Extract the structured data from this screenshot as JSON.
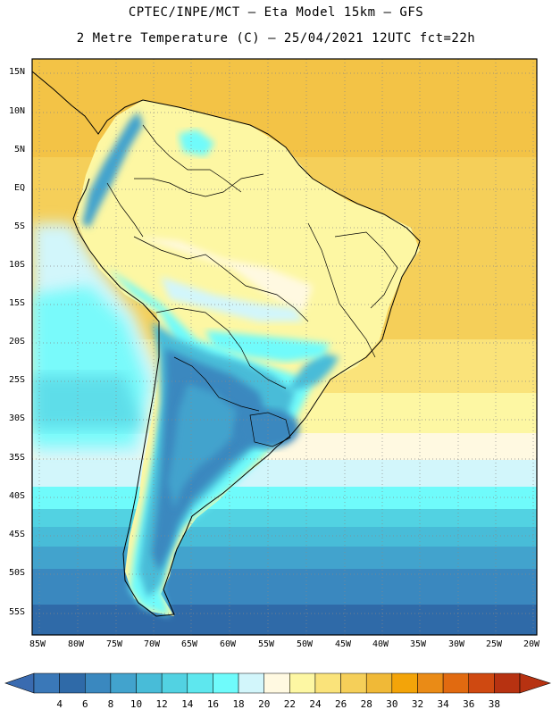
{
  "title_line1": "CPTEC/INPE/MCT –  Eta Model 15km – GFS",
  "title_line2": "2 Metre Temperature (C) – 25/04/2021 12UTC fct=22h",
  "lat_labels": [
    "15N",
    "10N",
    "5N",
    "EQ",
    "5S",
    "10S",
    "15S",
    "20S",
    "25S",
    "30S",
    "35S",
    "40S",
    "45S",
    "50S",
    "55S"
  ],
  "lon_labels": [
    "85W",
    "80W",
    "75W",
    "70W",
    "65W",
    "60W",
    "55W",
    "50W",
    "45W",
    "40W",
    "35W",
    "30W",
    "25W",
    "20W"
  ],
  "colorbar": {
    "labels": [
      "4",
      "6",
      "8",
      "10",
      "12",
      "14",
      "16",
      "18",
      "20",
      "22",
      "24",
      "26",
      "28",
      "30",
      "32",
      "34",
      "36",
      "38"
    ],
    "colors": [
      "#3a78b8",
      "#2f6aa8",
      "#3a88bf",
      "#42a3cd",
      "#48bcd8",
      "#52d2e2",
      "#5ee7ee",
      "#6ffbfb",
      "#d2f6fb",
      "#fff9e1",
      "#fdf7a3",
      "#fae37a",
      "#f5cf59",
      "#f0b937",
      "#f3a409",
      "#ea8b16",
      "#e16a10",
      "#cf4911",
      "#b73211"
    ],
    "low_arrow_color": "#3a6bb0",
    "high_arrow_color": "#b73211"
  }
}
